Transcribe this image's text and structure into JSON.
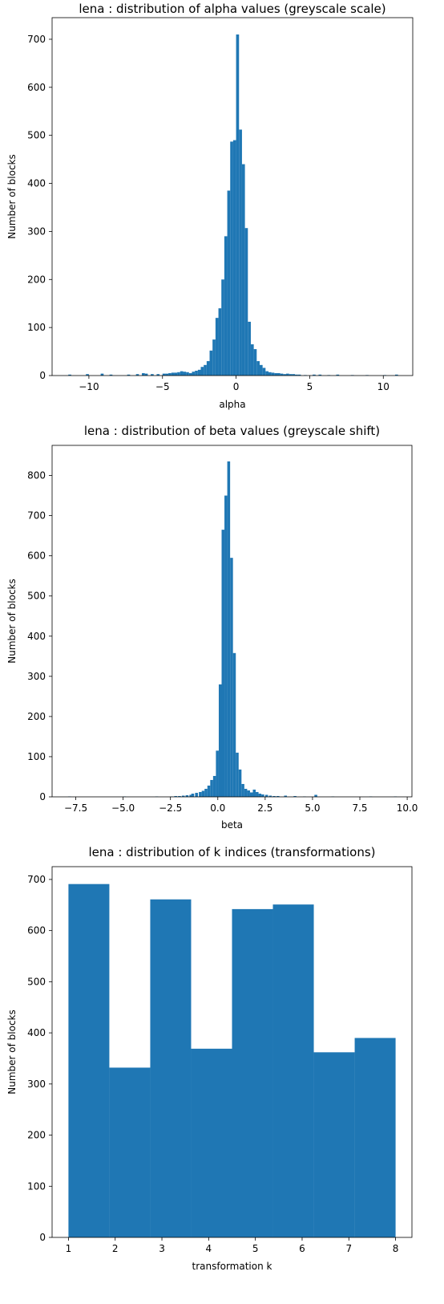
{
  "chart_data": [
    {
      "type": "bar",
      "title": "lena : distribution of alpha values (greyscale scale)",
      "xlabel": "alpha",
      "ylabel": "Number of blocks",
      "xlim": [
        -12.5,
        12.0
      ],
      "ylim": [
        0,
        745
      ],
      "xticks": [
        -10,
        -5,
        0,
        5,
        10
      ],
      "xtick_labels": [
        "−10",
        "−5",
        "0",
        "5",
        "10"
      ],
      "yticks": [
        0,
        100,
        200,
        300,
        400,
        500,
        600,
        700
      ],
      "bar_color": "#1f77b4",
      "bins": [
        [
          -11.4,
          2
        ],
        [
          -10.2,
          3
        ],
        [
          -9.2,
          4
        ],
        [
          -8.6,
          2
        ],
        [
          -7.4,
          2
        ],
        [
          -6.8,
          3
        ],
        [
          -6.4,
          5
        ],
        [
          -6.2,
          4
        ],
        [
          -5.8,
          3
        ],
        [
          -5.4,
          3
        ],
        [
          -5.0,
          4
        ],
        [
          -4.8,
          4
        ],
        [
          -4.6,
          5
        ],
        [
          -4.4,
          6
        ],
        [
          -4.2,
          6
        ],
        [
          -4.0,
          7
        ],
        [
          -3.8,
          9
        ],
        [
          -3.6,
          8
        ],
        [
          -3.4,
          7
        ],
        [
          -3.2,
          5
        ],
        [
          -3.0,
          8
        ],
        [
          -2.8,
          10
        ],
        [
          -2.6,
          12
        ],
        [
          -2.4,
          18
        ],
        [
          -2.2,
          22
        ],
        [
          -2.0,
          30
        ],
        [
          -1.8,
          52
        ],
        [
          -1.6,
          75
        ],
        [
          -1.4,
          120
        ],
        [
          -1.2,
          140
        ],
        [
          -1.0,
          200
        ],
        [
          -0.8,
          290
        ],
        [
          -0.6,
          385
        ],
        [
          -0.4,
          487
        ],
        [
          -0.2,
          490
        ],
        [
          0.0,
          710
        ],
        [
          0.2,
          512
        ],
        [
          0.4,
          440
        ],
        [
          0.6,
          307
        ],
        [
          0.8,
          112
        ],
        [
          1.0,
          65
        ],
        [
          1.2,
          55
        ],
        [
          1.4,
          30
        ],
        [
          1.6,
          22
        ],
        [
          1.8,
          16
        ],
        [
          2.0,
          9
        ],
        [
          2.2,
          7
        ],
        [
          2.4,
          6
        ],
        [
          2.6,
          5
        ],
        [
          2.8,
          5
        ],
        [
          3.0,
          4
        ],
        [
          3.2,
          3
        ],
        [
          3.4,
          4
        ],
        [
          3.6,
          3
        ],
        [
          3.8,
          3
        ],
        [
          4.0,
          2
        ],
        [
          4.2,
          2
        ],
        [
          4.6,
          1
        ],
        [
          5.2,
          2
        ],
        [
          5.6,
          2
        ],
        [
          6.2,
          1
        ],
        [
          6.8,
          2
        ],
        [
          7.8,
          1
        ],
        [
          8.8,
          1
        ],
        [
          10.0,
          1
        ],
        [
          10.8,
          2
        ]
      ]
    },
    {
      "type": "bar",
      "title": "lena : distribution of beta values (greyscale shift)",
      "xlabel": "beta",
      "ylabel": "Number of blocks",
      "xlim": [
        -8.75,
        10.25
      ],
      "ylim": [
        0,
        875
      ],
      "xticks": [
        -7.5,
        -5.0,
        -2.5,
        0.0,
        2.5,
        5.0,
        7.5,
        10.0
      ],
      "xtick_labels": [
        "−7.5",
        "−5.0",
        "−2.5",
        "0.0",
        "2.5",
        "5.0",
        "7.5",
        "10.0"
      ],
      "yticks": [
        0,
        100,
        200,
        300,
        400,
        500,
        600,
        700,
        800
      ],
      "bar_color": "#1f77b4",
      "bins": [
        [
          -7.9,
          1
        ],
        [
          -5.0,
          1
        ],
        [
          -3.3,
          1
        ],
        [
          -2.5,
          1
        ],
        [
          -2.3,
          2
        ],
        [
          -2.1,
          2
        ],
        [
          -1.9,
          3
        ],
        [
          -1.7,
          4
        ],
        [
          -1.5,
          5
        ],
        [
          -1.4,
          8
        ],
        [
          -1.2,
          10
        ],
        [
          -1.0,
          12
        ],
        [
          -0.85,
          15
        ],
        [
          -0.7,
          20
        ],
        [
          -0.55,
          28
        ],
        [
          -0.4,
          42
        ],
        [
          -0.25,
          52
        ],
        [
          -0.1,
          115
        ],
        [
          0.05,
          280
        ],
        [
          0.2,
          665
        ],
        [
          0.35,
          750
        ],
        [
          0.5,
          835
        ],
        [
          0.65,
          595
        ],
        [
          0.8,
          358
        ],
        [
          0.95,
          110
        ],
        [
          1.1,
          68
        ],
        [
          1.25,
          32
        ],
        [
          1.4,
          20
        ],
        [
          1.55,
          16
        ],
        [
          1.7,
          11
        ],
        [
          1.85,
          18
        ],
        [
          2.0,
          12
        ],
        [
          2.15,
          8
        ],
        [
          2.3,
          6
        ],
        [
          2.5,
          5
        ],
        [
          2.7,
          3
        ],
        [
          2.9,
          2
        ],
        [
          3.1,
          2
        ],
        [
          3.5,
          3
        ],
        [
          4.0,
          2
        ],
        [
          4.5,
          1
        ],
        [
          5.1,
          5
        ],
        [
          6.0,
          1
        ],
        [
          8.0,
          1
        ],
        [
          9.3,
          1
        ]
      ]
    },
    {
      "type": "bar",
      "title": "lena : distribution of k indices (transformations)",
      "xlabel": "transformation k",
      "ylabel": "Number of blocks",
      "xlim": [
        0.65,
        8.35
      ],
      "ylim": [
        0,
        725
      ],
      "xticks": [
        1,
        2,
        3,
        4,
        5,
        6,
        7,
        8
      ],
      "xtick_labels": [
        "1",
        "2",
        "3",
        "4",
        "5",
        "6",
        "7",
        "8"
      ],
      "yticks": [
        0,
        100,
        200,
        300,
        400,
        500,
        600,
        700
      ],
      "bar_color": "#1f77b4",
      "bins": [
        [
          1.0,
          691
        ],
        [
          1.875,
          332
        ],
        [
          2.75,
          661
        ],
        [
          3.625,
          369
        ],
        [
          4.5,
          642
        ],
        [
          5.375,
          651
        ],
        [
          6.25,
          362
        ],
        [
          7.125,
          390
        ]
      ]
    }
  ]
}
